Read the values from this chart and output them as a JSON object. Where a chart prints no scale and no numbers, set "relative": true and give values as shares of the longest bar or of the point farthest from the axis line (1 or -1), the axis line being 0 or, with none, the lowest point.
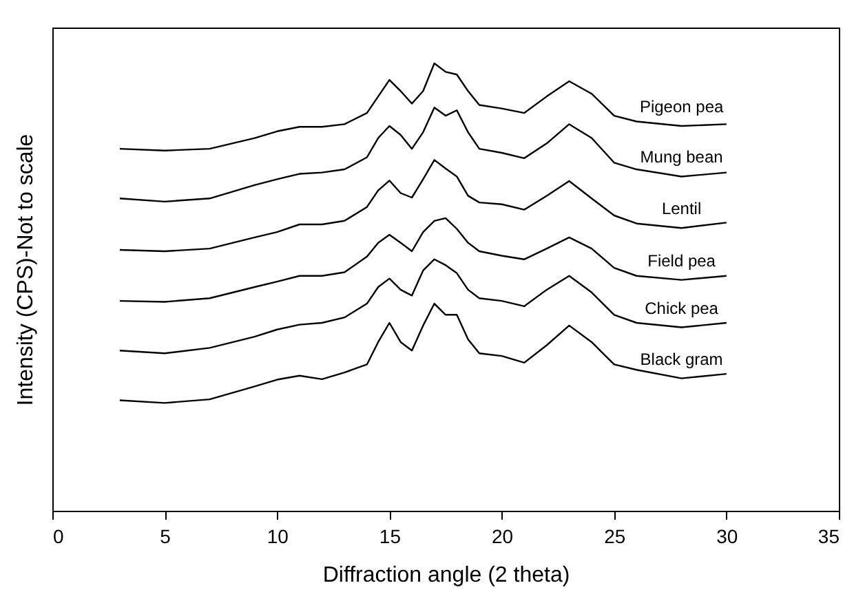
{
  "chart_data": {
    "type": "line",
    "relative": true,
    "xlabel": "Diffraction angle (2 theta)",
    "ylabel": "Intensity (CPS)-Not to scale",
    "xlim": [
      0,
      35
    ],
    "xticks": [
      0,
      5,
      10,
      15,
      20,
      25,
      30,
      35
    ],
    "grid": false,
    "legend": false,
    "tick_labels": "x",
    "marker": "none",
    "line_style": "solid",
    "x": [
      3,
      5,
      7,
      9,
      10,
      11,
      12,
      13,
      14,
      14.5,
      15,
      15.5,
      16,
      16.5,
      17,
      17.5,
      18,
      18.5,
      19,
      20,
      21,
      22,
      23,
      24,
      25,
      26,
      28,
      30
    ],
    "series": [
      {
        "name": "Pigeon pea",
        "color": "#000000",
        "values": [
          0.809,
          0.805,
          0.809,
          0.833,
          0.848,
          0.858,
          0.858,
          0.864,
          0.889,
          0.926,
          0.963,
          0.938,
          0.91,
          0.938,
          1.0,
          0.981,
          0.975,
          0.938,
          0.907,
          0.899,
          0.889,
          0.926,
          0.96,
          0.932,
          0.883,
          0.87,
          0.86,
          0.864
        ]
      },
      {
        "name": "Mung bean",
        "color": "#000000",
        "values": [
          0.698,
          0.691,
          0.698,
          0.728,
          0.741,
          0.753,
          0.756,
          0.763,
          0.79,
          0.833,
          0.86,
          0.84,
          0.809,
          0.846,
          0.901,
          0.883,
          0.895,
          0.846,
          0.809,
          0.8,
          0.788,
          0.821,
          0.864,
          0.833,
          0.778,
          0.763,
          0.747,
          0.756
        ]
      },
      {
        "name": "Lentil",
        "color": "#000000",
        "values": [
          0.583,
          0.58,
          0.586,
          0.611,
          0.623,
          0.64,
          0.64,
          0.648,
          0.679,
          0.716,
          0.738,
          0.71,
          0.7,
          0.741,
          0.784,
          0.765,
          0.747,
          0.704,
          0.689,
          0.685,
          0.673,
          0.704,
          0.737,
          0.698,
          0.66,
          0.642,
          0.632,
          0.644
        ]
      },
      {
        "name": "Field pea",
        "color": "#000000",
        "values": [
          0.469,
          0.467,
          0.475,
          0.5,
          0.512,
          0.525,
          0.525,
          0.533,
          0.568,
          0.599,
          0.617,
          0.599,
          0.58,
          0.623,
          0.648,
          0.654,
          0.63,
          0.599,
          0.58,
          0.57,
          0.562,
          0.586,
          0.611,
          0.586,
          0.543,
          0.525,
          0.516,
          0.525
        ]
      },
      {
        "name": "Chick pea",
        "color": "#000000",
        "values": [
          0.358,
          0.352,
          0.364,
          0.389,
          0.405,
          0.416,
          0.42,
          0.432,
          0.463,
          0.5,
          0.519,
          0.494,
          0.481,
          0.537,
          0.562,
          0.549,
          0.531,
          0.494,
          0.475,
          0.469,
          0.457,
          0.494,
          0.525,
          0.488,
          0.438,
          0.42,
          0.41,
          0.42
        ]
      },
      {
        "name": "Black gram",
        "color": "#000000",
        "values": [
          0.247,
          0.241,
          0.249,
          0.278,
          0.293,
          0.302,
          0.294,
          0.309,
          0.327,
          0.377,
          0.42,
          0.377,
          0.358,
          0.414,
          0.463,
          0.438,
          0.438,
          0.383,
          0.352,
          0.346,
          0.331,
          0.37,
          0.414,
          0.377,
          0.327,
          0.315,
          0.296,
          0.306
        ]
      }
    ]
  }
}
